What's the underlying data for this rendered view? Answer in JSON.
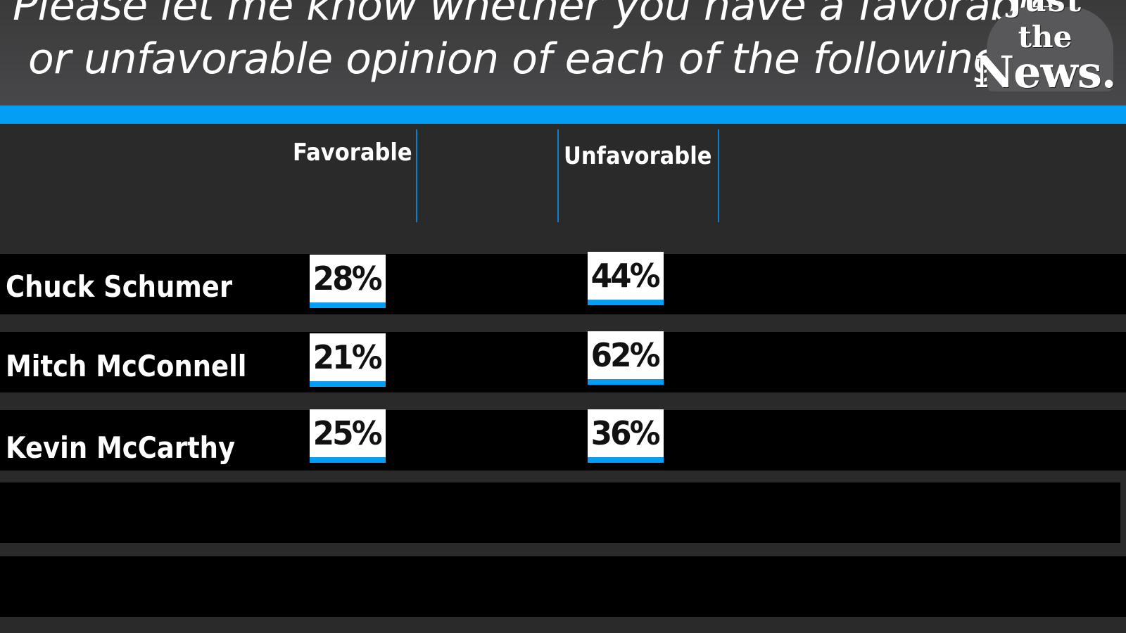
{
  "header": {
    "title_line_1": "Please let me know whether you have a favorable",
    "title_line_2": "or unfavorable opinion of each of the following:"
  },
  "logo": {
    "word_1": "Just",
    "word_2": "the",
    "word_3": "News."
  },
  "colors": {
    "accent": "#049ff5",
    "background": "#2a2a2b",
    "row_band": "#000000",
    "value_box": "#ffffff"
  },
  "chart_data": {
    "type": "table",
    "title": "Please let me know whether you have a favorable or unfavorable opinion of each of the following:",
    "columns": [
      "Favorable",
      "Unfavorable"
    ],
    "rows": [
      {
        "name": "Chuck Schumer",
        "favorable": "28%",
        "unfavorable": "44%"
      },
      {
        "name": "Mitch McConnell",
        "favorable": "21%",
        "unfavorable": "62%"
      },
      {
        "name": "Kevin McCarthy",
        "favorable": "25%",
        "unfavorable": "36%"
      }
    ]
  }
}
